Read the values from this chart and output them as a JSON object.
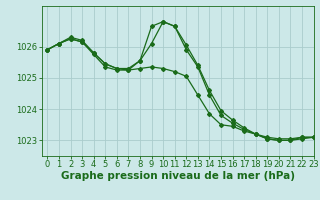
{
  "bg_color": "#cce8e8",
  "grid_color": "#aacccc",
  "line_color": "#1a6b1a",
  "title": "Graphe pression niveau de la mer (hPa)",
  "xlim": [
    -0.5,
    23
  ],
  "ylim": [
    1022.5,
    1027.3
  ],
  "yticks": [
    1023,
    1024,
    1025,
    1026
  ],
  "xticks": [
    0,
    1,
    2,
    3,
    4,
    5,
    6,
    7,
    8,
    9,
    10,
    11,
    12,
    13,
    14,
    15,
    16,
    17,
    18,
    19,
    20,
    21,
    22,
    23
  ],
  "series": [
    {
      "x": [
        0,
        1,
        2,
        3,
        4,
        5,
        6,
        7,
        8,
        9,
        10,
        11,
        12,
        13,
        14,
        15,
        16,
        17,
        18,
        19,
        20,
        21,
        22,
        23
      ],
      "y": [
        1025.9,
        1026.1,
        1026.3,
        1026.2,
        1025.8,
        1025.45,
        1025.3,
        1025.3,
        1025.55,
        1026.65,
        1026.8,
        1026.65,
        1026.05,
        1025.4,
        1024.6,
        1023.95,
        1023.65,
        1023.4,
        1023.2,
        1023.1,
        1023.05,
        1023.05,
        1023.1,
        1023.1
      ]
    },
    {
      "x": [
        0,
        1,
        2,
        3,
        4,
        5,
        6,
        7,
        8,
        9,
        10,
        11,
        12,
        13,
        14,
        15,
        16,
        17,
        18,
        19,
        20,
        21,
        22,
        23
      ],
      "y": [
        1025.9,
        1026.1,
        1026.25,
        1026.15,
        1025.75,
        1025.35,
        1025.25,
        1025.25,
        1025.3,
        1025.35,
        1025.3,
        1025.2,
        1025.05,
        1024.45,
        1023.85,
        1023.5,
        1023.45,
        1023.3,
        1023.2,
        1023.05,
        1023.0,
        1023.0,
        1023.05,
        1023.1
      ]
    },
    {
      "x": [
        0,
        1,
        2,
        3,
        4,
        5,
        6,
        7,
        8,
        9,
        10,
        11,
        12,
        13,
        14,
        15,
        16,
        17,
        18,
        19,
        20,
        21,
        22,
        23
      ],
      "y": [
        1025.9,
        1026.1,
        1026.25,
        1026.15,
        1025.8,
        1025.45,
        1025.3,
        1025.25,
        1025.55,
        1026.1,
        1026.8,
        1026.65,
        1025.9,
        1025.35,
        1024.45,
        1023.8,
        1023.55,
        1023.35,
        1023.2,
        1023.05,
        1023.0,
        1023.0,
        1023.1,
        1023.1
      ]
    }
  ],
  "title_fontsize": 7.5,
  "tick_fontsize": 6,
  "marker": "D",
  "markersize": 2.0,
  "linewidth": 0.9
}
